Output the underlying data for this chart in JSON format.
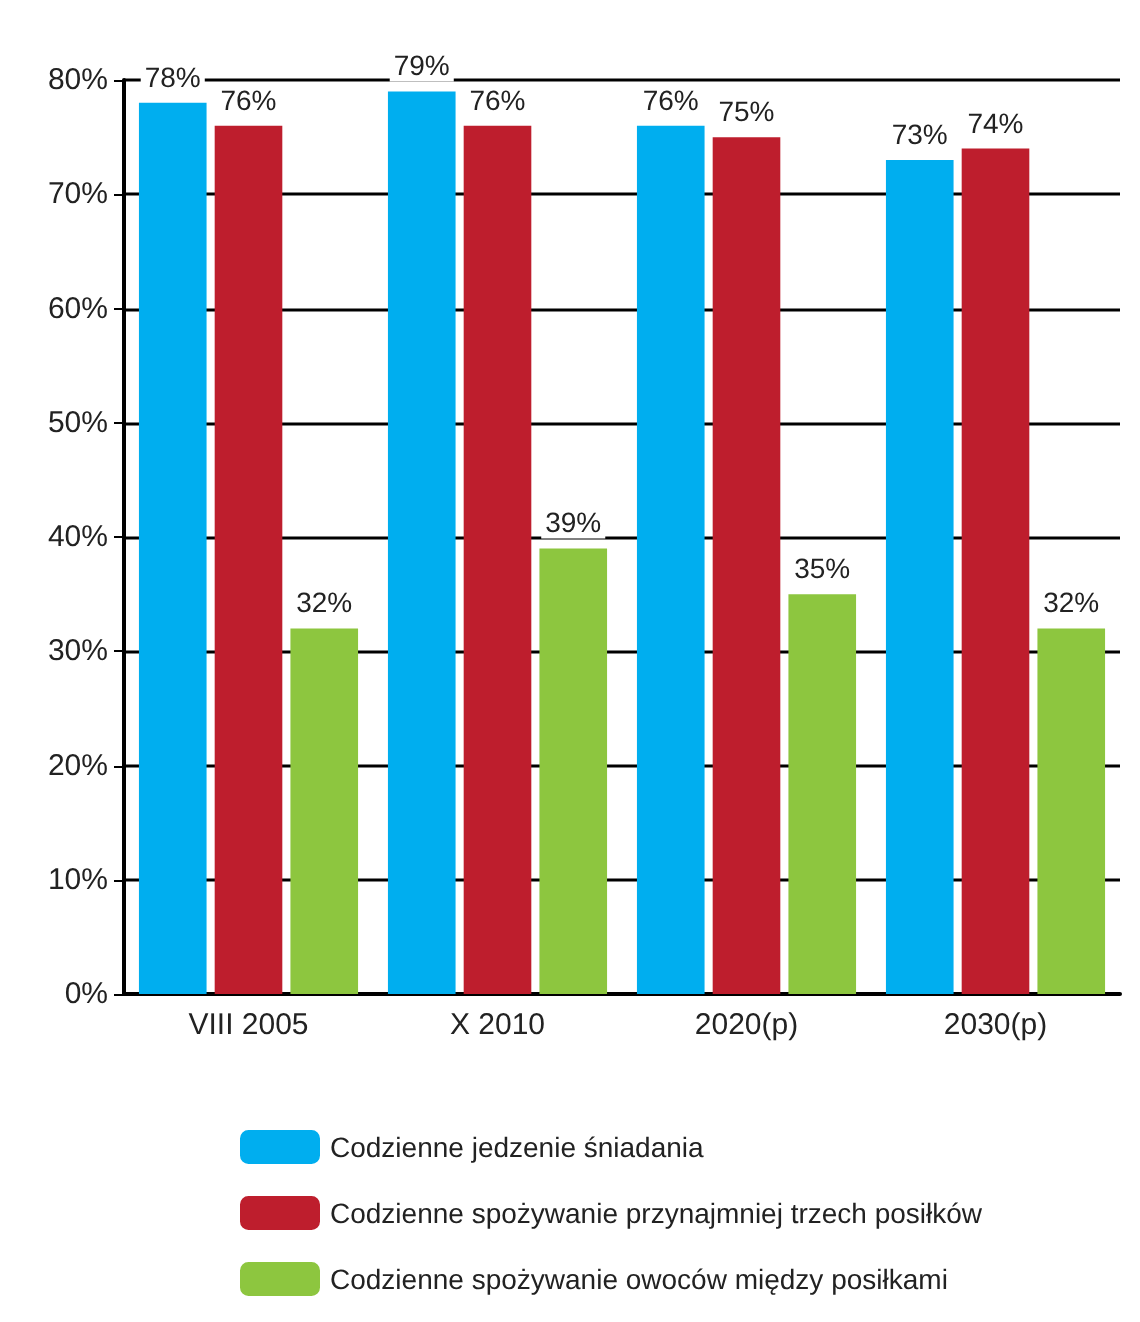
{
  "chart_data": {
    "type": "bar",
    "categories": [
      "VIII 2005",
      "X 2010",
      "2020(p)",
      "2030(p)"
    ],
    "series": [
      {
        "name": "Codzienne jedzenie śniadania",
        "color": "#00aeef",
        "values": [
          78,
          79,
          76,
          73
        ],
        "value_labels": [
          "78%",
          "79%",
          "76%",
          "73%"
        ]
      },
      {
        "name": "Codzienne spożywanie przynajmniej trzech posiłków",
        "color": "#be1e2d",
        "values": [
          76,
          76,
          75,
          74
        ],
        "value_labels": [
          "76%",
          "76%",
          "75%",
          "74%"
        ]
      },
      {
        "name": "Codzienne spożywanie owoców między posiłkami",
        "color": "#8dc63f",
        "values": [
          32,
          39,
          35,
          32
        ],
        "value_labels": [
          "32%",
          "39%",
          "35%",
          "32%"
        ]
      }
    ],
    "ylim": [
      0,
      80
    ],
    "yticks": [
      {
        "value": 0,
        "label": "0%"
      },
      {
        "value": 10,
        "label": "10%"
      },
      {
        "value": 20,
        "label": "20%"
      },
      {
        "value": 30,
        "label": "30%"
      },
      {
        "value": 40,
        "label": "40%"
      },
      {
        "value": 50,
        "label": "50%"
      },
      {
        "value": 60,
        "label": "60%"
      },
      {
        "value": 70,
        "label": "70%"
      },
      {
        "value": 80,
        "label": "80%"
      }
    ],
    "grid": "y",
    "legend": "bottom"
  }
}
